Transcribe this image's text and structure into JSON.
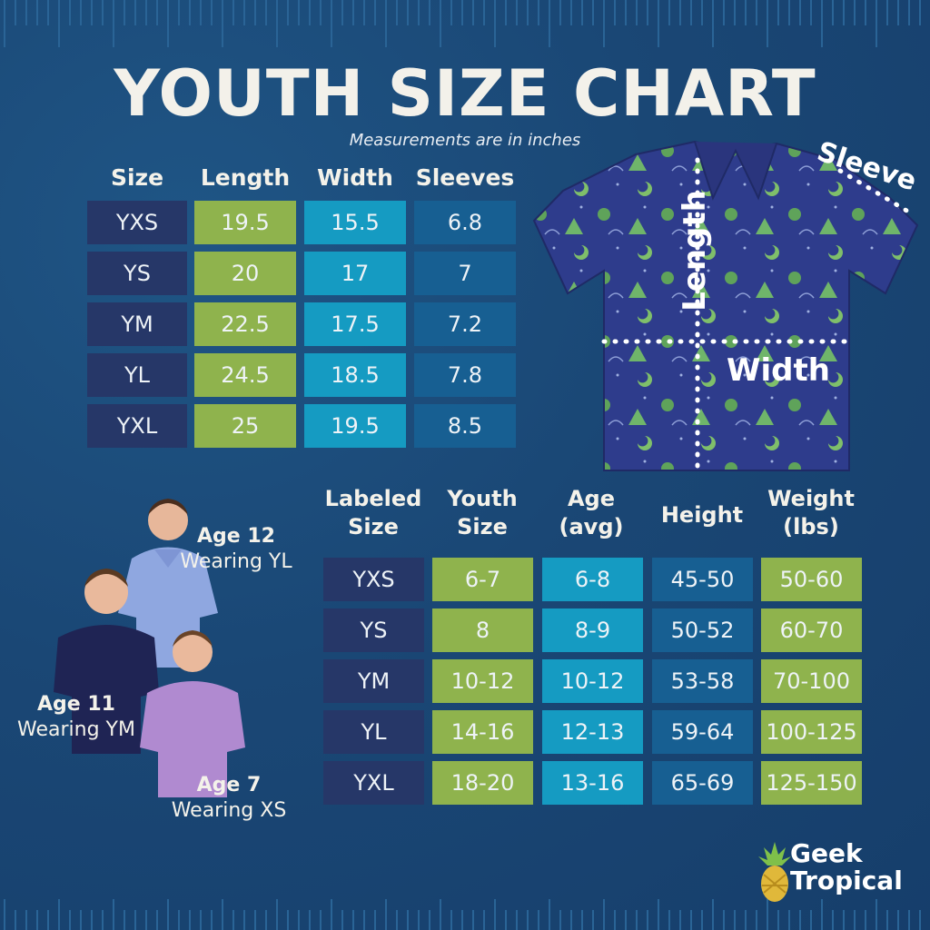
{
  "title": "YOUTH SIZE CHART",
  "subtitle": "Measurements are in inches",
  "table1": {
    "headers": [
      "Size",
      "Length",
      "Width",
      "Sleeves"
    ],
    "rows": [
      [
        "YXS",
        "19.5",
        "15.5",
        "6.8"
      ],
      [
        "YS",
        "20",
        "17",
        "7"
      ],
      [
        "YM",
        "22.5",
        "17.5",
        "7.2"
      ],
      [
        "YL",
        "24.5",
        "18.5",
        "7.8"
      ],
      [
        "YXL",
        "25",
        "19.5",
        "8.5"
      ]
    ]
  },
  "diagram": {
    "length_label": "Length",
    "width_label": "Width",
    "sleeve_label": "Sleeve"
  },
  "table2": {
    "headers": [
      [
        "Labeled",
        "Size"
      ],
      [
        "Youth",
        "Size"
      ],
      [
        "Age",
        "(avg)"
      ],
      [
        "Height"
      ],
      [
        "Weight",
        "(lbs)"
      ]
    ],
    "rows": [
      [
        "YXS",
        "6-7",
        "6-8",
        "45-50",
        "50-60"
      ],
      [
        "YS",
        "8",
        "8-9",
        "50-52",
        "60-70"
      ],
      [
        "YM",
        "10-12",
        "10-12",
        "53-58",
        "70-100"
      ],
      [
        "YL",
        "14-16",
        "12-13",
        "59-64",
        "100-125"
      ],
      [
        "YXL",
        "18-20",
        "13-16",
        "65-69",
        "125-150"
      ]
    ]
  },
  "models": [
    {
      "age": "Age 12",
      "wearing": "Wearing YL"
    },
    {
      "age": "Age 11",
      "wearing": "Wearing YM"
    },
    {
      "age": "Age 7",
      "wearing": "Wearing XS"
    }
  ],
  "brand": {
    "line1": "Geek",
    "line2": "Tropical"
  },
  "colors": {
    "navy": "#263768",
    "green": "#8fb34d",
    "cyan": "#159bc2",
    "blue": "#175f92",
    "background": "#1c4a78"
  }
}
